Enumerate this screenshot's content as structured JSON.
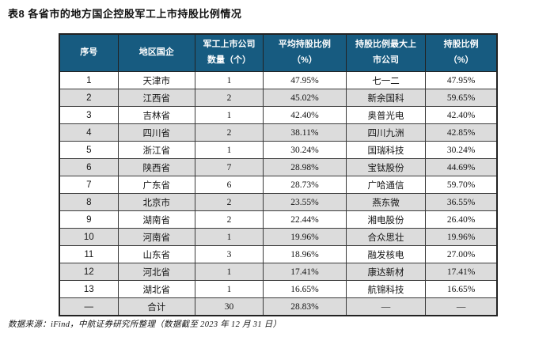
{
  "title": "表8 各省市的地方国企控股军工上市持股比例情况",
  "source_note": "数据来源：iFind，中航证券研究所整理（数据截至 2023 年 12 月 31 日）",
  "colors": {
    "header_bg": "#175B80",
    "header_text": "#FFFFFF",
    "zebra_row_bg": "#DCDCDC",
    "border": "#222222"
  },
  "table": {
    "headers": [
      "序号",
      "地区国企",
      "军工上市公司\n数量（个）",
      "平均持股比例\n（%）",
      "持股比例最大上\n市公司",
      "持股比例\n（%）"
    ],
    "column_widths_pct": [
      13.4,
      17.6,
      15.6,
      18.9,
      18.2,
      16.3
    ],
    "rows": [
      [
        "1",
        "天津市",
        "1",
        "47.95%",
        "七一二",
        "47.95%"
      ],
      [
        "2",
        "江西省",
        "2",
        "45.02%",
        "新余国科",
        "59.65%"
      ],
      [
        "3",
        "吉林省",
        "1",
        "42.40%",
        "奥普光电",
        "42.40%"
      ],
      [
        "4",
        "四川省",
        "2",
        "38.11%",
        "四川九洲",
        "42.85%"
      ],
      [
        "5",
        "浙江省",
        "1",
        "30.24%",
        "国瑞科技",
        "30.24%"
      ],
      [
        "6",
        "陕西省",
        "7",
        "28.98%",
        "宝钛股份",
        "44.69%"
      ],
      [
        "7",
        "广东省",
        "6",
        "28.73%",
        "广哈通信",
        "59.70%"
      ],
      [
        "8",
        "北京市",
        "2",
        "23.55%",
        "燕东微",
        "36.55%"
      ],
      [
        "9",
        "湖南省",
        "2",
        "22.44%",
        "湘电股份",
        "26.40%"
      ],
      [
        "10",
        "河南省",
        "1",
        "19.96%",
        "合众思壮",
        "19.96%"
      ],
      [
        "11",
        "山东省",
        "3",
        "18.96%",
        "融发核电",
        "27.00%"
      ],
      [
        "12",
        "河北省",
        "1",
        "17.41%",
        "康达新材",
        "17.41%"
      ],
      [
        "13",
        "湖北省",
        "1",
        "16.65%",
        "航锦科技",
        "16.65%"
      ]
    ],
    "total_row": [
      "—",
      "合计",
      "30",
      "28.83%",
      "—",
      "—"
    ]
  }
}
